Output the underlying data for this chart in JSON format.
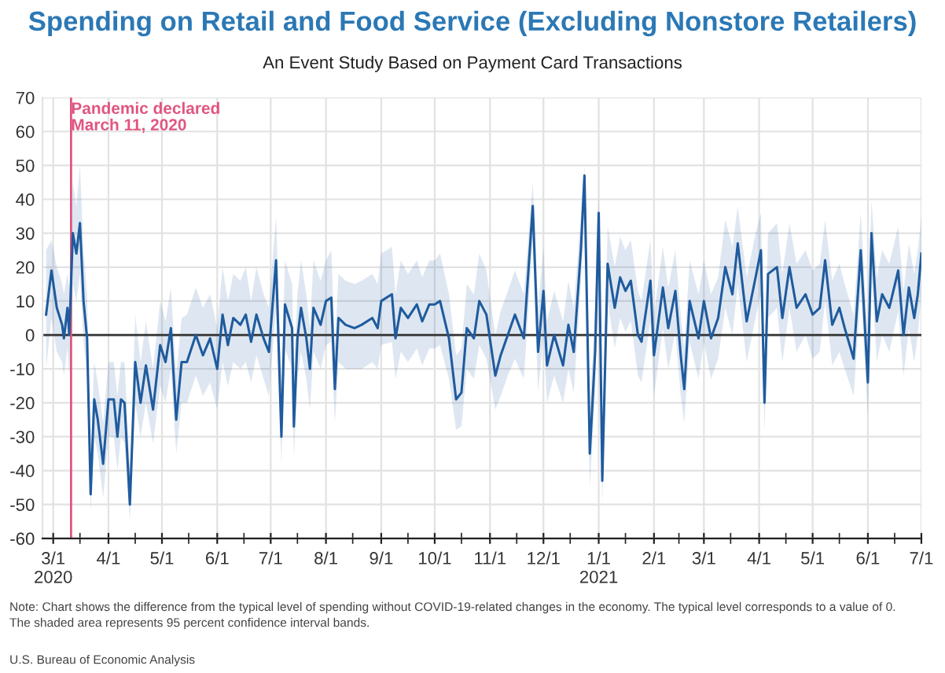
{
  "chart_data": {
    "type": "line",
    "title": "Spending on Retail and Food Service (Excluding Nonstore Retailers)",
    "subtitle": "An Event Study Based on Payment Card Transactions",
    "annotations": [
      "Note: Chart shows the difference from the typical level of spending without COVID-19-related changes in the economy. The typical level corresponds to a value of 0.\nThe shaded area represents 95 percent confidence interval bands.",
      "U.S. Bureau of Economic Analysis"
    ],
    "x": [
      "2020-02-26",
      "2020-02-29",
      "2020-03-03",
      "2020-03-06",
      "2020-03-07",
      "2020-03-09",
      "2020-03-10",
      "2020-03-12",
      "2020-03-14",
      "2020-03-16",
      "2020-03-18",
      "2020-03-20",
      "2020-03-22",
      "2020-03-24",
      "2020-03-26",
      "2020-03-29",
      "2020-04-01",
      "2020-04-04",
      "2020-04-06",
      "2020-04-08",
      "2020-04-10",
      "2020-04-13",
      "2020-04-16",
      "2020-04-19",
      "2020-04-22",
      "2020-04-26",
      "2020-04-30",
      "2020-05-03",
      "2020-05-06",
      "2020-05-09",
      "2020-05-12",
      "2020-05-15",
      "2020-05-20",
      "2020-05-24",
      "2020-05-28",
      "2020-06-01",
      "2020-06-04",
      "2020-06-07",
      "2020-06-10",
      "2020-06-14",
      "2020-06-17",
      "2020-06-20",
      "2020-06-23",
      "2020-06-27",
      "2020-06-30",
      "2020-07-04",
      "2020-07-07",
      "2020-07-09",
      "2020-07-13",
      "2020-07-14",
      "2020-07-16",
      "2020-07-18",
      "2020-07-21",
      "2020-07-23",
      "2020-07-25",
      "2020-07-29",
      "2020-08-01",
      "2020-08-04",
      "2020-08-06",
      "2020-08-08",
      "2020-08-12",
      "2020-08-17",
      "2020-08-21",
      "2020-08-27",
      "2020-08-30",
      "2020-09-01",
      "2020-09-07",
      "2020-09-09",
      "2020-09-12",
      "2020-09-16",
      "2020-09-21",
      "2020-09-24",
      "2020-09-28",
      "2020-10-01",
      "2020-10-04",
      "2020-10-09",
      "2020-10-13",
      "2020-10-16",
      "2020-10-19",
      "2020-10-23",
      "2020-10-26",
      "2020-10-30",
      "2020-11-04",
      "2020-11-07",
      "2020-11-11",
      "2020-11-15",
      "2020-11-20",
      "2020-11-25",
      "2020-11-28",
      "2020-12-01",
      "2020-12-03",
      "2020-12-07",
      "2020-12-12",
      "2020-12-15",
      "2020-12-18",
      "2020-12-22",
      "2020-12-24",
      "2020-12-27",
      "2020-12-30",
      "2021-01-01",
      "2021-01-03",
      "2021-01-06",
      "2021-01-10",
      "2021-01-13",
      "2021-01-16",
      "2021-01-19",
      "2021-01-23",
      "2021-01-25",
      "2021-01-30",
      "2021-02-01",
      "2021-02-06",
      "2021-02-09",
      "2021-02-13",
      "2021-02-16",
      "2021-02-18",
      "2021-02-21",
      "2021-02-26",
      "2021-03-01",
      "2021-03-05",
      "2021-03-09",
      "2021-03-13",
      "2021-03-17",
      "2021-03-20",
      "2021-03-25",
      "2021-03-30",
      "2021-04-02",
      "2021-04-04",
      "2021-04-06",
      "2021-04-11",
      "2021-04-14",
      "2021-04-18",
      "2021-04-22",
      "2021-04-27",
      "2021-05-01",
      "2021-05-05",
      "2021-05-08",
      "2021-05-12",
      "2021-05-16",
      "2021-05-19",
      "2021-05-24",
      "2021-05-28",
      "2021-06-01",
      "2021-06-03",
      "2021-06-06",
      "2021-06-09",
      "2021-06-13",
      "2021-06-18",
      "2021-06-21",
      "2021-06-24",
      "2021-06-27",
      "2021-06-29",
      "2021-07-01"
    ],
    "series": [
      {
        "color": "#1f5b9e",
        "values": [
          6,
          19,
          8,
          3,
          -1,
          8,
          0,
          30,
          24,
          33,
          10,
          -1,
          -47,
          -19,
          -25,
          -38,
          -19,
          -19,
          -30,
          -19,
          -20,
          -50,
          -8,
          -20,
          -9,
          -22,
          -3,
          -8,
          2,
          -25,
          -8,
          -8,
          0,
          -6,
          -1,
          -10,
          6,
          -3,
          5,
          3,
          6,
          -2,
          6,
          -1,
          -5,
          22,
          -30,
          9,
          2,
          -27,
          -1,
          8,
          -1,
          -10,
          8,
          3,
          10,
          11,
          -16,
          5,
          3,
          2,
          3,
          5,
          2,
          10,
          12,
          -1,
          8,
          5,
          9,
          4,
          9,
          9,
          10,
          -1,
          -19,
          -17,
          2,
          -1,
          10,
          6,
          -12,
          -6,
          0,
          6,
          -1,
          38,
          -5,
          13,
          -9,
          0,
          -9,
          3,
          -5,
          25,
          47,
          -35,
          -5,
          36,
          -43,
          21,
          8,
          17,
          13,
          16,
          0,
          -2,
          16,
          -6,
          14,
          2,
          13,
          -6,
          -16,
          10,
          -1,
          10,
          -1,
          5,
          20,
          12,
          27,
          4,
          17,
          25,
          -20,
          18,
          20,
          5,
          20,
          8,
          12,
          6,
          8,
          22,
          3,
          8,
          2,
          -7,
          25,
          -14,
          30,
          4,
          12,
          8,
          19,
          0,
          14,
          5,
          12,
          24
        ],
        "upper": [
          25,
          28,
          20,
          15,
          12,
          18,
          14,
          45,
          38,
          50,
          25,
          12,
          -35,
          -8,
          -14,
          -26,
          -8,
          -8,
          -18,
          -8,
          -8,
          -40,
          6,
          -8,
          4,
          -10,
          10,
          4,
          14,
          -12,
          5,
          6,
          14,
          8,
          12,
          2,
          20,
          10,
          18,
          16,
          20,
          10,
          20,
          12,
          8,
          35,
          -15,
          22,
          15,
          -12,
          12,
          22,
          12,
          2,
          22,
          16,
          22,
          25,
          -4,
          18,
          16,
          15,
          16,
          18,
          15,
          24,
          26,
          12,
          22,
          18,
          22,
          17,
          22,
          22,
          24,
          12,
          -6,
          -4,
          15,
          12,
          24,
          19,
          0,
          7,
          13,
          19,
          12,
          45,
          8,
          26,
          4,
          13,
          4,
          16,
          8,
          35,
          50,
          -22,
          8,
          42,
          -30,
          32,
          20,
          29,
          25,
          28,
          13,
          10,
          28,
          6,
          26,
          14,
          25,
          6,
          -4,
          22,
          12,
          22,
          12,
          17,
          34,
          26,
          38,
          17,
          30,
          36,
          -8,
          30,
          33,
          18,
          33,
          21,
          25,
          19,
          21,
          34,
          16,
          21,
          15,
          6,
          36,
          -2,
          40,
          17,
          25,
          21,
          32,
          13,
          27,
          18,
          25,
          35
        ],
        "lower": [
          -10,
          5,
          -5,
          -8,
          -12,
          -4,
          -12,
          15,
          10,
          18,
          -2,
          -12,
          -52,
          -30,
          -35,
          -48,
          -30,
          -30,
          -40,
          -30,
          -32,
          -55,
          -20,
          -30,
          -20,
          -32,
          -15,
          -20,
          -10,
          -35,
          -20,
          -20,
          -12,
          -18,
          -14,
          -22,
          -8,
          -15,
          -8,
          -10,
          -8,
          -14,
          -6,
          -13,
          -18,
          8,
          -38,
          -4,
          -10,
          -36,
          -13,
          -5,
          -13,
          -22,
          -5,
          -10,
          -3,
          -2,
          -26,
          -8,
          -10,
          -10,
          -10,
          -8,
          -10,
          -3,
          -2,
          -13,
          -5,
          -8,
          -4,
          -9,
          -4,
          -4,
          -3,
          -13,
          -28,
          -27,
          -10,
          -13,
          -3,
          -7,
          -22,
          -18,
          -12,
          -7,
          -13,
          28,
          -17,
          0,
          -20,
          -12,
          -20,
          -10,
          -17,
          15,
          38,
          -45,
          -17,
          25,
          -50,
          10,
          -4,
          5,
          1,
          4,
          -12,
          -14,
          4,
          -18,
          2,
          -10,
          1,
          -18,
          -26,
          -2,
          -13,
          -2,
          -13,
          -7,
          8,
          0,
          15,
          -8,
          5,
          12,
          -28,
          5,
          8,
          -8,
          8,
          -5,
          0,
          -7,
          -5,
          10,
          -9,
          -5,
          -10,
          -18,
          13,
          -24,
          18,
          -8,
          0,
          -5,
          7,
          -12,
          2,
          -8,
          0,
          12
        ],
        "name": null
      }
    ],
    "xlim": [
      "2020-02-24",
      "2021-07-01"
    ],
    "xticks": [
      {
        "value": "2020-03-01",
        "label": "3/1\n2020"
      },
      {
        "value": "2020-03-16",
        "label": null
      },
      {
        "value": "2020-04-01",
        "label": "4/1"
      },
      {
        "value": "2020-04-16",
        "label": null
      },
      {
        "value": "2020-05-01",
        "label": "5/1"
      },
      {
        "value": "2020-05-16",
        "label": null
      },
      {
        "value": "2020-06-01",
        "label": "6/1"
      },
      {
        "value": "2020-06-16",
        "label": null
      },
      {
        "value": "2020-07-01",
        "label": "7/1"
      },
      {
        "value": "2020-07-16",
        "label": null
      },
      {
        "value": "2020-08-01",
        "label": "8/1"
      },
      {
        "value": "2020-08-16",
        "label": null
      },
      {
        "value": "2020-09-01",
        "label": "9/1"
      },
      {
        "value": "2020-09-16",
        "label": null
      },
      {
        "value": "2020-10-01",
        "label": "10/1"
      },
      {
        "value": "2020-10-16",
        "label": null
      },
      {
        "value": "2020-11-01",
        "label": "11/1"
      },
      {
        "value": "2020-11-16",
        "label": null
      },
      {
        "value": "2020-12-01",
        "label": "12/1"
      },
      {
        "value": "2020-12-16",
        "label": null
      },
      {
        "value": "2021-01-01",
        "label": "1/1\n2021"
      },
      {
        "value": "2021-01-16",
        "label": null
      },
      {
        "value": "2021-02-01",
        "label": "2/1"
      },
      {
        "value": "2021-02-15",
        "label": null
      },
      {
        "value": "2021-03-01",
        "label": "3/1"
      },
      {
        "value": "2021-03-16",
        "label": null
      },
      {
        "value": "2021-04-01",
        "label": "4/1"
      },
      {
        "value": "2021-04-16",
        "label": null
      },
      {
        "value": "2021-05-01",
        "label": "5/1"
      },
      {
        "value": "2021-05-16",
        "label": null
      },
      {
        "value": "2021-06-01",
        "label": "6/1"
      },
      {
        "value": "2021-06-16",
        "label": null
      },
      {
        "value": "2021-07-01",
        "label": "7/1"
      }
    ],
    "ylim": [
      -60,
      70
    ],
    "yticks": [
      -60,
      -50,
      -40,
      -30,
      -20,
      -10,
      0,
      10,
      20,
      30,
      40,
      50,
      60,
      70
    ],
    "ref_lines": [
      {
        "axis": "y",
        "value": 0,
        "label": null,
        "color": "#333333"
      },
      {
        "axis": "x",
        "value": "2020-03-11",
        "label": "Pandemic declared\nMarch 11, 2020",
        "color": "#e0557f"
      }
    ],
    "grid": true,
    "marker": "none",
    "line_style": "solid"
  }
}
